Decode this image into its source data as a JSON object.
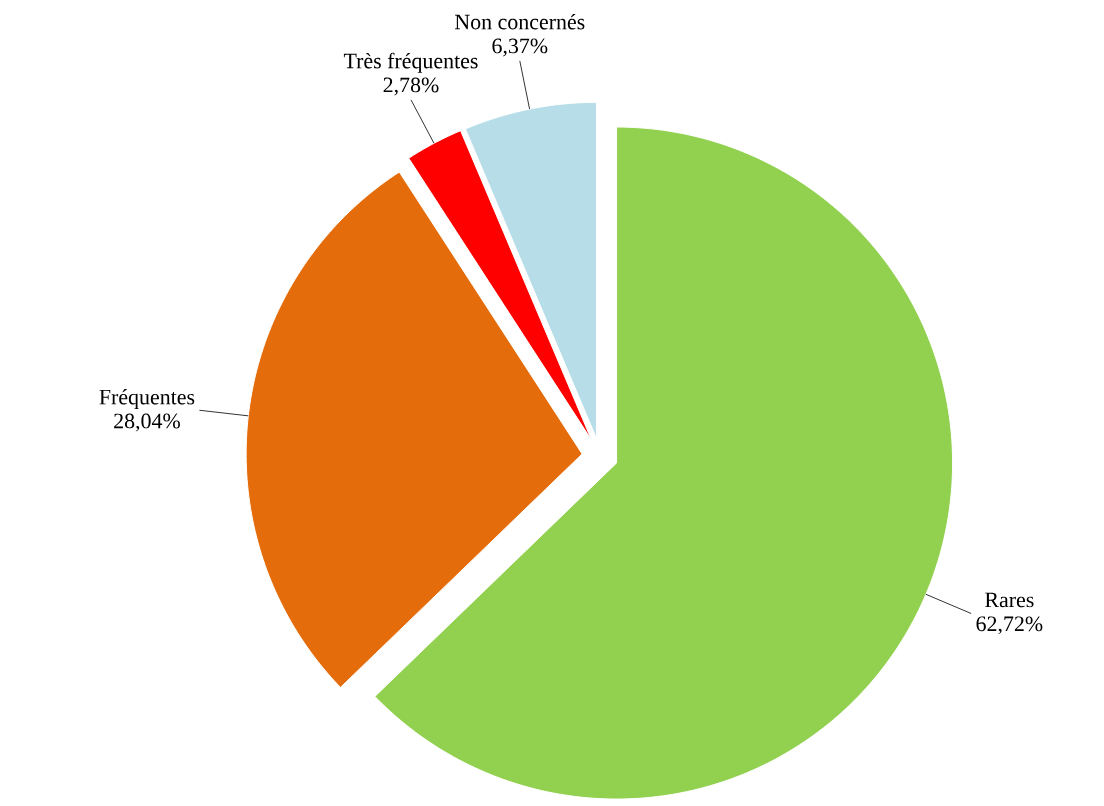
{
  "chart_data": {
    "type": "pie",
    "categories": [
      "Rares",
      "Fréquentes",
      "Très fréquentes",
      "Non concernés"
    ],
    "values": [
      62.72,
      28.04,
      2.78,
      6.37
    ],
    "colors": [
      "#92d050",
      "#e46c0a",
      "#ff0000",
      "#b7dee8"
    ],
    "value_labels": [
      "62,72%",
      "28,04%",
      "2,78%",
      "6,37%"
    ]
  }
}
